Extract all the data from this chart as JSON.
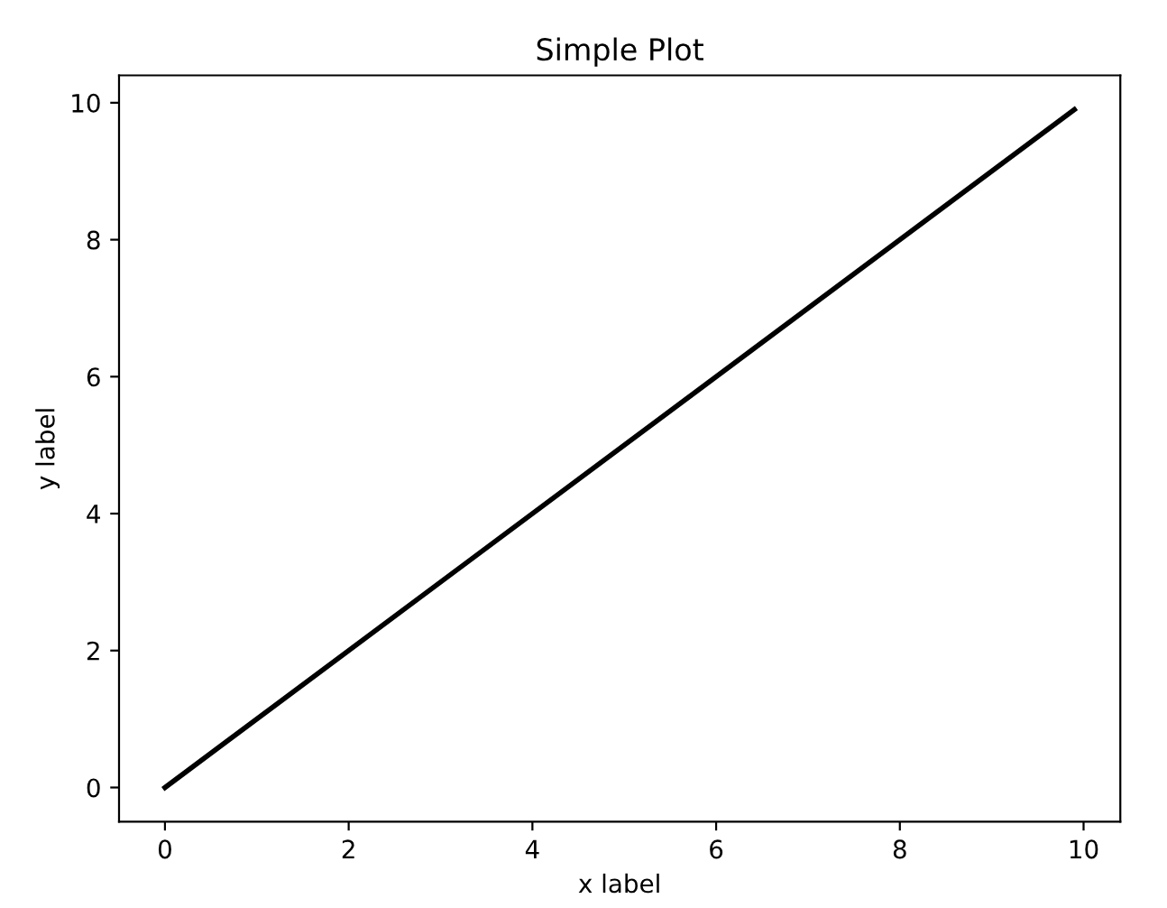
{
  "chart_data": {
    "type": "line",
    "title": "Simple Plot",
    "xlabel": "x label",
    "ylabel": "y label",
    "x": [
      0,
      9.9
    ],
    "series": [
      {
        "color": "#000000",
        "values": [
          0,
          9.9
        ]
      }
    ],
    "xlim": [
      -0.5,
      10.4
    ],
    "ylim": [
      -0.5,
      10.4
    ],
    "xticks": [
      0,
      2,
      4,
      6,
      8,
      10
    ],
    "yticks": [
      0,
      2,
      4,
      6,
      8,
      10
    ],
    "grid": false,
    "legend": false,
    "marker": "none",
    "line_style": "solid"
  }
}
